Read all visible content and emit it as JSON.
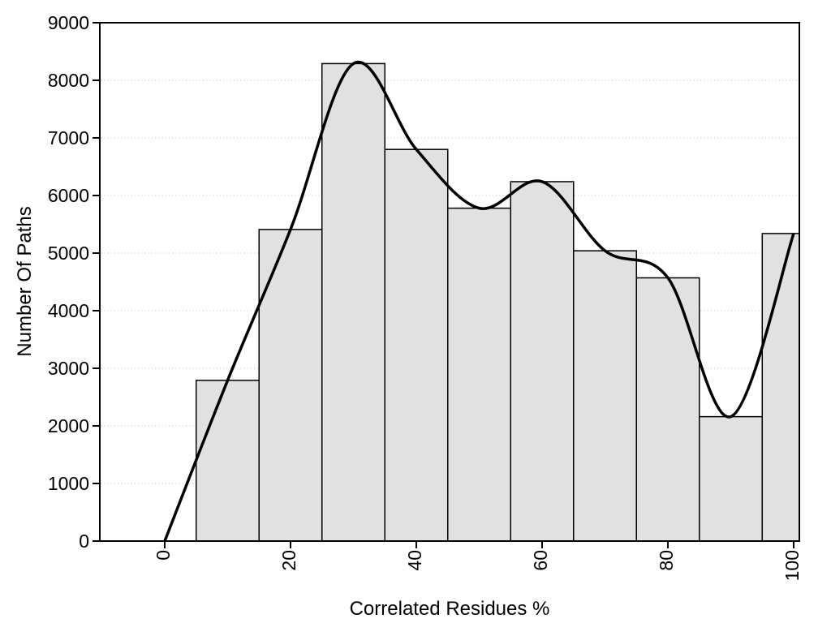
{
  "chart_data": {
    "type": "bar",
    "subtype": "histogram-with-spline-overlay",
    "title": "",
    "xlabel": "Correlated Residues %",
    "ylabel": "Number Of Paths",
    "xlim": [
      -10.32,
      100.9
    ],
    "ylim": [
      0,
      9000
    ],
    "x_ticks": [
      "0",
      "20",
      "40",
      "60",
      "80",
      "100"
    ],
    "x_tick_values": [
      0,
      20,
      40,
      60,
      80,
      100
    ],
    "y_ticks": [
      "0",
      "1000",
      "2000",
      "3000",
      "4000",
      "5000",
      "6000",
      "7000",
      "8000",
      "9000"
    ],
    "y_tick_values": [
      0,
      1000,
      2000,
      3000,
      4000,
      5000,
      6000,
      7000,
      8000,
      9000
    ],
    "grid": {
      "horizontal": true,
      "vertical": false,
      "style": "dotted",
      "color": "#bcbcbc"
    },
    "legend": "none",
    "bars": {
      "categories": [
        10,
        20,
        30,
        40,
        50,
        60,
        70,
        80,
        90,
        100
      ],
      "centers": [
        10,
        20,
        30,
        40,
        50,
        60,
        70,
        80,
        90,
        100
      ],
      "width": 10,
      "values": [
        2790,
        5410,
        8290,
        6800,
        5780,
        6240,
        5040,
        4570,
        2160,
        5340
      ],
      "fill": "#e1e1e1",
      "stroke": "#000000",
      "note": "last bar clipped at right plot edge"
    },
    "curve": {
      "type": "smooth-spline",
      "color": "#000000",
      "stroke_width": 3.5,
      "points": [
        [
          0,
          0
        ],
        [
          10,
          2790
        ],
        [
          20,
          5410
        ],
        [
          30,
          8290
        ],
        [
          40,
          6800
        ],
        [
          50,
          5780
        ],
        [
          60,
          6240
        ],
        [
          70,
          5040
        ],
        [
          80,
          4570
        ],
        [
          90,
          2160
        ],
        [
          100,
          5340
        ]
      ]
    }
  },
  "colors": {
    "background": "#ffffff",
    "frame": "#000000",
    "bar_fill": "#e1e1e1",
    "bar_stroke": "#000000",
    "curve": "#000000",
    "grid": "#bcbcbc",
    "text": "#000000"
  }
}
